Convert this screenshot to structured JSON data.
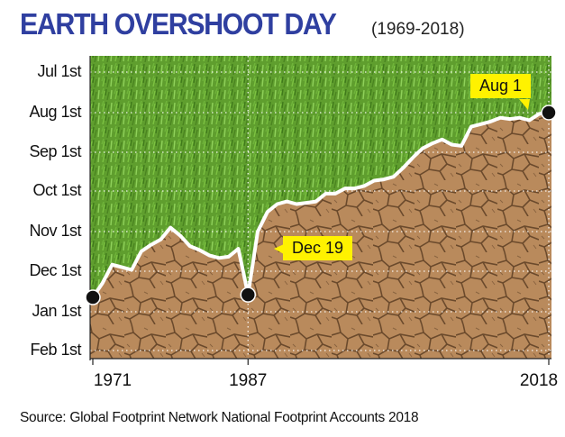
{
  "title": "EARTH OVERSHOOT DAY",
  "subtitle": "(1969-2018)",
  "source": "Source: Global Footprint Network National Footprint Accounts 2018",
  "colors": {
    "title": "#2f3fa0",
    "callout": "#fff200",
    "grass": "#5f9e2e",
    "soil": "#b98a5c",
    "marker": "#111111"
  },
  "chart_data": {
    "type": "area",
    "y_tick_labels": [
      "Jul 1st",
      "Aug 1st",
      "Sep 1st",
      "Oct 1st",
      "Nov 1st",
      "Dec 1st",
      "Jan 1st",
      "Feb 1st"
    ],
    "y_axis_reversed_dates": true,
    "x_tick_labels": [
      "1971",
      "1987",
      "2018"
    ],
    "x_ticks": [
      1971,
      1987,
      2018
    ],
    "xlim": [
      1971,
      2018
    ],
    "grid": true,
    "x": [
      1971,
      1972,
      1973,
      1974,
      1975,
      1976,
      1977,
      1978,
      1979,
      1980,
      1981,
      1982,
      1983,
      1984,
      1985,
      1986,
      1987,
      1988,
      1989,
      1990,
      1991,
      1992,
      1993,
      1994,
      1995,
      1996,
      1997,
      1998,
      1999,
      2000,
      2001,
      2002,
      2003,
      2004,
      2005,
      2006,
      2007,
      2008,
      2009,
      2010,
      2011,
      2012,
      2013,
      2014,
      2015,
      2016,
      2017,
      2018
    ],
    "overshoot_date": [
      "Dec 21",
      "Dec 10",
      "Nov 26",
      "Nov 28",
      "Nov 30",
      "Nov 16",
      "Nov 11",
      "Nov 7",
      "Oct 29",
      "Nov 4",
      "Nov 12",
      "Nov 15",
      "Nov 19",
      "Nov 21",
      "Nov 20",
      "Nov 14",
      "Dec 19",
      "Nov 1",
      "Oct 17",
      "Oct 11",
      "Oct 9",
      "Oct 11",
      "Oct 10",
      "Oct 9",
      "Oct 3",
      "Oct 3",
      "Sep 29",
      "Sep 29",
      "Sep 27",
      "Sep 23",
      "Sep 22",
      "Sep 20",
      "Sep 13",
      "Sep 5",
      "Aug 29",
      "Aug 25",
      "Aug 22",
      "Aug 26",
      "Aug 27",
      "Aug 12",
      "Aug 10",
      "Aug 8",
      "Aug 5",
      "Aug 6",
      "Aug 5",
      "Aug 7",
      "Aug 2",
      "Aug 1"
    ],
    "annotations": [
      {
        "year": 1987,
        "label": "Dec 19"
      },
      {
        "year": 2018,
        "label": "Aug 1"
      }
    ],
    "highlighted_points": [
      1971,
      1987,
      2018
    ]
  }
}
